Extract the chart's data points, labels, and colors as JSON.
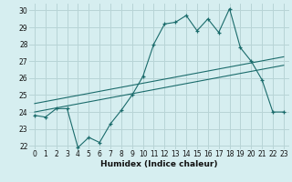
{
  "xlabel": "Humidex (Indice chaleur)",
  "bg_color": "#d6eef0",
  "grid_color": "#b8d4d6",
  "line_color": "#1a6b6b",
  "x": [
    0,
    1,
    2,
    3,
    4,
    5,
    6,
    7,
    8,
    9,
    10,
    11,
    12,
    13,
    14,
    15,
    16,
    17,
    18,
    19,
    20,
    21,
    22,
    23
  ],
  "y_jagged": [
    23.8,
    23.7,
    24.2,
    24.2,
    21.9,
    22.5,
    22.2,
    23.3,
    24.1,
    25.0,
    26.1,
    28.0,
    29.2,
    29.3,
    29.7,
    28.8,
    29.5,
    28.7,
    30.1,
    27.8,
    27.0,
    25.9,
    24.0,
    24.0
  ],
  "trend1": [
    24.0,
    24.12,
    24.24,
    24.36,
    24.48,
    24.6,
    24.72,
    24.84,
    24.96,
    25.08,
    25.2,
    25.32,
    25.44,
    25.56,
    25.68,
    25.8,
    25.92,
    26.04,
    26.16,
    26.28,
    26.4,
    26.52,
    26.64,
    26.76
  ],
  "trend2": [
    24.5,
    24.62,
    24.74,
    24.86,
    24.98,
    25.1,
    25.22,
    25.34,
    25.46,
    25.58,
    25.7,
    25.82,
    25.94,
    26.06,
    26.18,
    26.3,
    26.42,
    26.54,
    26.66,
    26.78,
    26.9,
    27.02,
    27.14,
    27.26
  ],
  "ylim": [
    21.8,
    30.4
  ],
  "xlim": [
    -0.5,
    23.5
  ],
  "yticks": [
    22,
    23,
    24,
    25,
    26,
    27,
    28,
    29,
    30
  ],
  "xticks": [
    0,
    1,
    2,
    3,
    4,
    5,
    6,
    7,
    8,
    9,
    10,
    11,
    12,
    13,
    14,
    15,
    16,
    17,
    18,
    19,
    20,
    21,
    22,
    23
  ],
  "xlabel_fontsize": 6.5,
  "tick_fontsize": 5.5
}
